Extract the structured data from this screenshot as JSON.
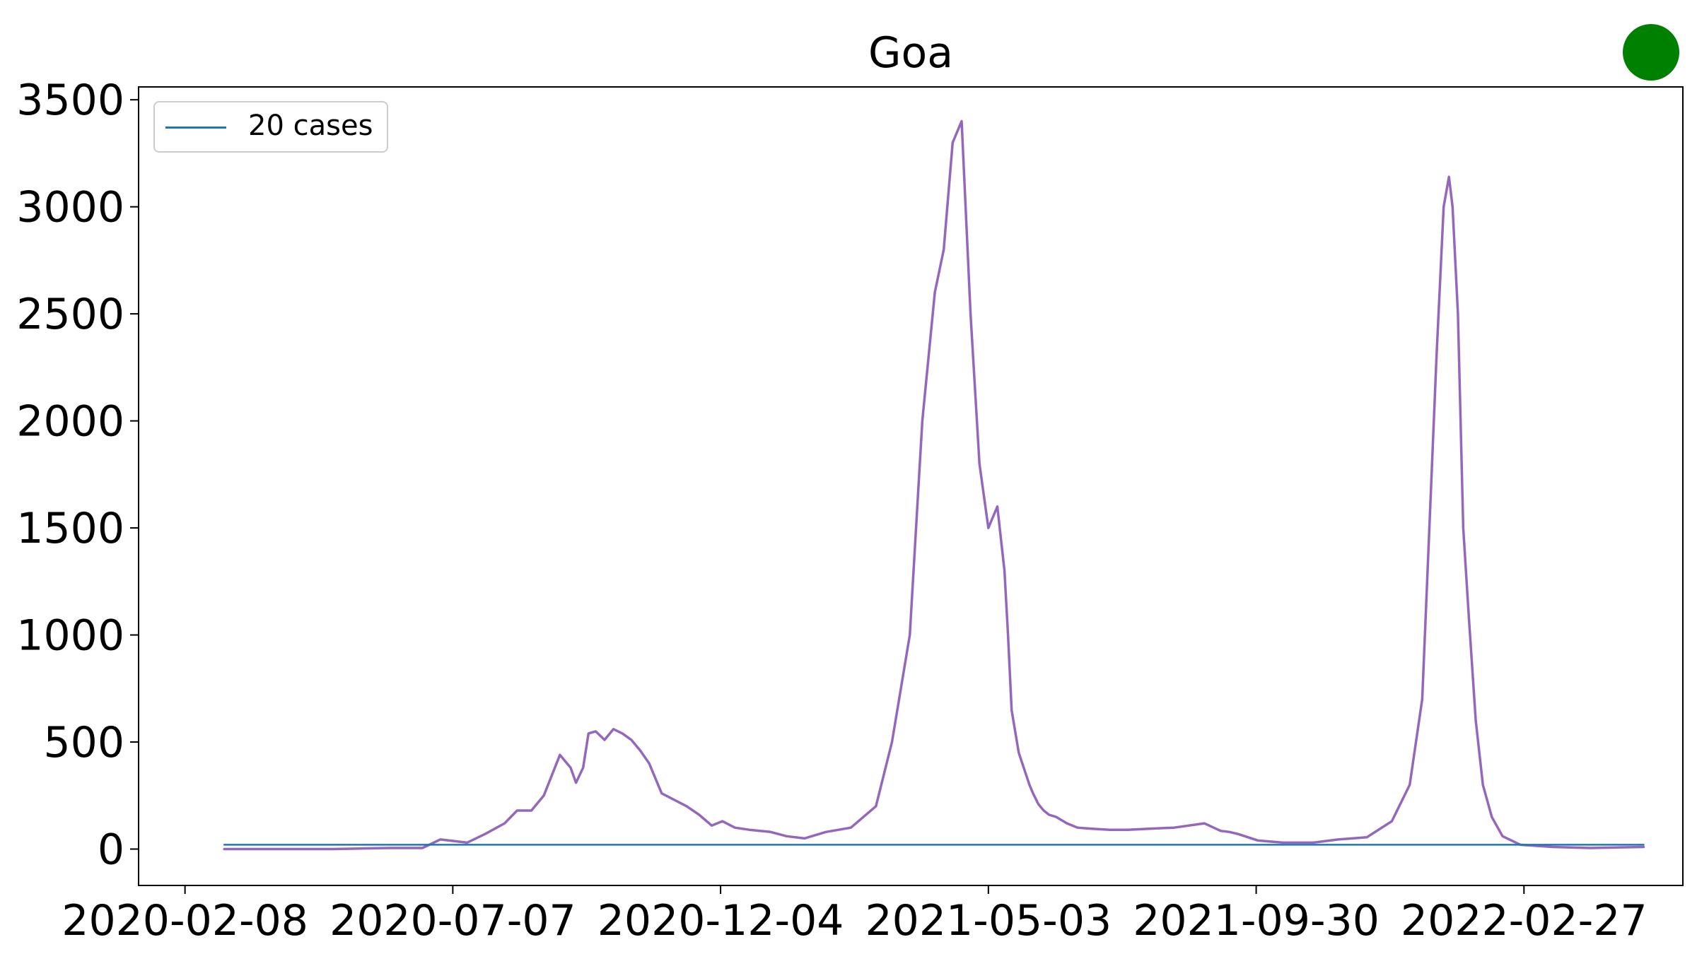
{
  "chart_data": {
    "type": "line",
    "title": "Goa",
    "xlabel": "",
    "ylabel": "",
    "x_ticks": [
      "2020-02-08",
      "2020-07-07",
      "2020-12-04",
      "2021-05-03",
      "2021-09-30",
      "2022-02-27"
    ],
    "y_ticks": [
      "0",
      "500",
      "1000",
      "1500",
      "2000",
      "2500",
      "3000",
      "3500"
    ],
    "xlim": [
      "2020-01-13",
      "2022-05-27"
    ],
    "ylim": [
      -170,
      3560
    ],
    "grid": false,
    "legend": {
      "position": "top-left",
      "entries": [
        {
          "label": "20 cases",
          "color": "#1f77b4"
        }
      ]
    },
    "series": [
      {
        "name": "20 cases",
        "color": "#1f77b4",
        "x": [
          "2020-03-01",
          "2022-05-05"
        ],
        "y": [
          20,
          20
        ]
      },
      {
        "color": "#9467bd",
        "x": [
          "2020-03-01",
          "2020-05-01",
          "2020-06-01",
          "2020-06-20",
          "2020-06-30",
          "2020-07-05",
          "2020-07-15",
          "2020-07-25",
          "2020-08-05",
          "2020-08-12",
          "2020-08-20",
          "2020-08-27",
          "2020-09-05",
          "2020-09-11",
          "2020-09-14",
          "2020-09-18",
          "2020-09-21",
          "2020-09-25",
          "2020-09-30",
          "2020-10-05",
          "2020-10-10",
          "2020-10-15",
          "2020-10-20",
          "2020-10-25",
          "2020-11-01",
          "2020-11-08",
          "2020-11-15",
          "2020-11-22",
          "2020-11-29",
          "2020-12-05",
          "2020-12-12",
          "2020-12-20",
          "2021-01-01",
          "2021-01-10",
          "2021-01-20",
          "2021-02-01",
          "2021-02-15",
          "2021-03-01",
          "2021-03-10",
          "2021-03-20",
          "2021-03-27",
          "2021-04-03",
          "2021-04-08",
          "2021-04-13",
          "2021-04-18",
          "2021-04-23",
          "2021-04-28",
          "2021-05-03",
          "2021-05-08",
          "2021-05-12",
          "2021-05-14",
          "2021-05-16",
          "2021-05-18",
          "2021-05-20",
          "2021-05-22",
          "2021-05-24",
          "2021-05-26",
          "2021-05-28",
          "2021-05-31",
          "2021-06-03",
          "2021-06-06",
          "2021-06-10",
          "2021-06-16",
          "2021-06-22",
          "2021-06-30",
          "2021-07-10",
          "2021-07-20",
          "2021-08-01",
          "2021-08-15",
          "2021-09-01",
          "2021-09-10",
          "2021-09-15",
          "2021-09-20",
          "2021-10-01",
          "2021-10-15",
          "2021-11-01",
          "2021-11-15",
          "2021-12-01",
          "2021-12-15",
          "2021-12-25",
          "2022-01-01",
          "2022-01-05",
          "2022-01-09",
          "2022-01-13",
          "2022-01-16",
          "2022-01-18",
          "2022-01-21",
          "2022-01-24",
          "2022-01-27",
          "2022-01-31",
          "2022-02-04",
          "2022-02-09",
          "2022-02-15",
          "2022-02-25",
          "2022-03-15",
          "2022-04-05",
          "2022-05-05"
        ],
        "y": [
          0,
          0,
          5,
          5,
          45,
          40,
          30,
          70,
          120,
          180,
          180,
          250,
          440,
          380,
          310,
          380,
          540,
          550,
          510,
          560,
          540,
          510,
          460,
          400,
          260,
          230,
          200,
          160,
          110,
          130,
          100,
          90,
          80,
          60,
          50,
          80,
          100,
          200,
          500,
          1000,
          2000,
          2600,
          2800,
          3300,
          3400,
          2500,
          1800,
          1500,
          1600,
          1300,
          1000,
          650,
          550,
          450,
          400,
          350,
          300,
          260,
          210,
          180,
          160,
          150,
          120,
          100,
          95,
          90,
          90,
          95,
          100,
          120,
          85,
          80,
          70,
          40,
          30,
          30,
          45,
          55,
          130,
          300,
          700,
          1500,
          2300,
          3000,
          3140,
          3000,
          2500,
          1500,
          1100,
          600,
          300,
          150,
          60,
          20,
          10,
          5,
          10
        ]
      }
    ]
  }
}
